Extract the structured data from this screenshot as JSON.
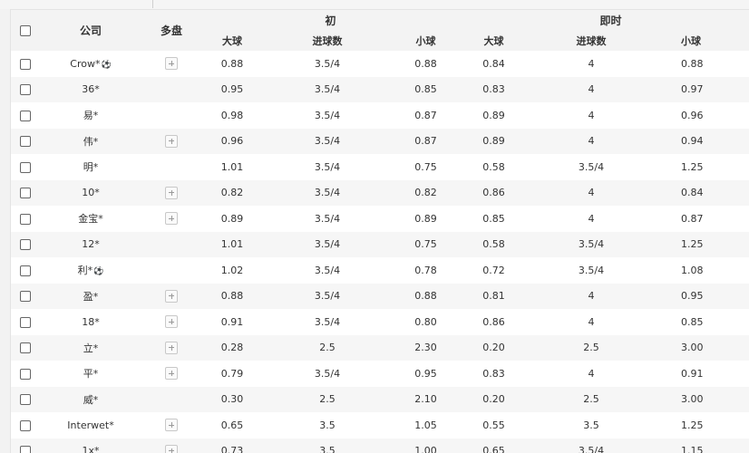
{
  "header": {
    "company": "公司",
    "multi": "多盘",
    "initial": "初",
    "live": "即时",
    "over": "大球",
    "goals": "进球数",
    "under": "小球",
    "under_live": "小球"
  },
  "rows": [
    {
      "name": "Crow*",
      "ball": true,
      "multi": true,
      "i_over": "0.88",
      "i_goals": "3.5/4",
      "i_under": "0.88",
      "l_over": "0.84",
      "l_goals": "4",
      "l_under": "0.88"
    },
    {
      "name": "36*",
      "ball": false,
      "multi": false,
      "i_over": "0.95",
      "i_goals": "3.5/4",
      "i_under": "0.85",
      "l_over": "0.83",
      "l_goals": "4",
      "l_under": "0.97"
    },
    {
      "name": "易*",
      "ball": false,
      "multi": false,
      "i_over": "0.98",
      "i_goals": "3.5/4",
      "i_under": "0.87",
      "l_over": "0.89",
      "l_goals": "4",
      "l_under": "0.96"
    },
    {
      "name": "伟*",
      "ball": false,
      "multi": true,
      "i_over": "0.96",
      "i_goals": "3.5/4",
      "i_under": "0.87",
      "l_over": "0.89",
      "l_goals": "4",
      "l_under": "0.94"
    },
    {
      "name": "明*",
      "ball": false,
      "multi": false,
      "i_over": "1.01",
      "i_goals": "3.5/4",
      "i_under": "0.75",
      "l_over": "0.58",
      "l_goals": "3.5/4",
      "l_under": "1.25"
    },
    {
      "name": "10*",
      "ball": false,
      "multi": true,
      "i_over": "0.82",
      "i_goals": "3.5/4",
      "i_under": "0.82",
      "l_over": "0.86",
      "l_goals": "4",
      "l_under": "0.84"
    },
    {
      "name": "金宝*",
      "ball": false,
      "multi": true,
      "i_over": "0.89",
      "i_goals": "3.5/4",
      "i_under": "0.89",
      "l_over": "0.85",
      "l_goals": "4",
      "l_under": "0.87"
    },
    {
      "name": "12*",
      "ball": false,
      "multi": false,
      "i_over": "1.01",
      "i_goals": "3.5/4",
      "i_under": "0.75",
      "l_over": "0.58",
      "l_goals": "3.5/4",
      "l_under": "1.25"
    },
    {
      "name": "利*",
      "ball": true,
      "multi": false,
      "i_over": "1.02",
      "i_goals": "3.5/4",
      "i_under": "0.78",
      "l_over": "0.72",
      "l_goals": "3.5/4",
      "l_under": "1.08"
    },
    {
      "name": "盈*",
      "ball": false,
      "multi": true,
      "i_over": "0.88",
      "i_goals": "3.5/4",
      "i_under": "0.88",
      "l_over": "0.81",
      "l_goals": "4",
      "l_under": "0.95"
    },
    {
      "name": "18*",
      "ball": false,
      "multi": true,
      "i_over": "0.91",
      "i_goals": "3.5/4",
      "i_under": "0.80",
      "l_over": "0.86",
      "l_goals": "4",
      "l_under": "0.85"
    },
    {
      "name": "立*",
      "ball": false,
      "multi": true,
      "i_over": "0.28",
      "i_goals": "2.5",
      "i_under": "2.30",
      "l_over": "0.20",
      "l_goals": "2.5",
      "l_under": "3.00"
    },
    {
      "name": "平*",
      "ball": false,
      "multi": true,
      "i_over": "0.79",
      "i_goals": "3.5/4",
      "i_under": "0.95",
      "l_over": "0.83",
      "l_goals": "4",
      "l_under": "0.91"
    },
    {
      "name": "威*",
      "ball": false,
      "multi": false,
      "i_over": "0.30",
      "i_goals": "2.5",
      "i_under": "2.10",
      "l_over": "0.20",
      "l_goals": "2.5",
      "l_under": "3.00"
    },
    {
      "name": "Interwet*",
      "ball": false,
      "multi": true,
      "i_over": "0.65",
      "i_goals": "3.5",
      "i_under": "1.05",
      "l_over": "0.55",
      "l_goals": "3.5",
      "l_under": "1.25"
    },
    {
      "name": "1x*",
      "ball": false,
      "multi": true,
      "i_over": "0.73",
      "i_goals": "3.5",
      "i_under": "1.00",
      "l_over": "0.65",
      "l_goals": "3.5/4",
      "l_under": "1.15"
    }
  ]
}
